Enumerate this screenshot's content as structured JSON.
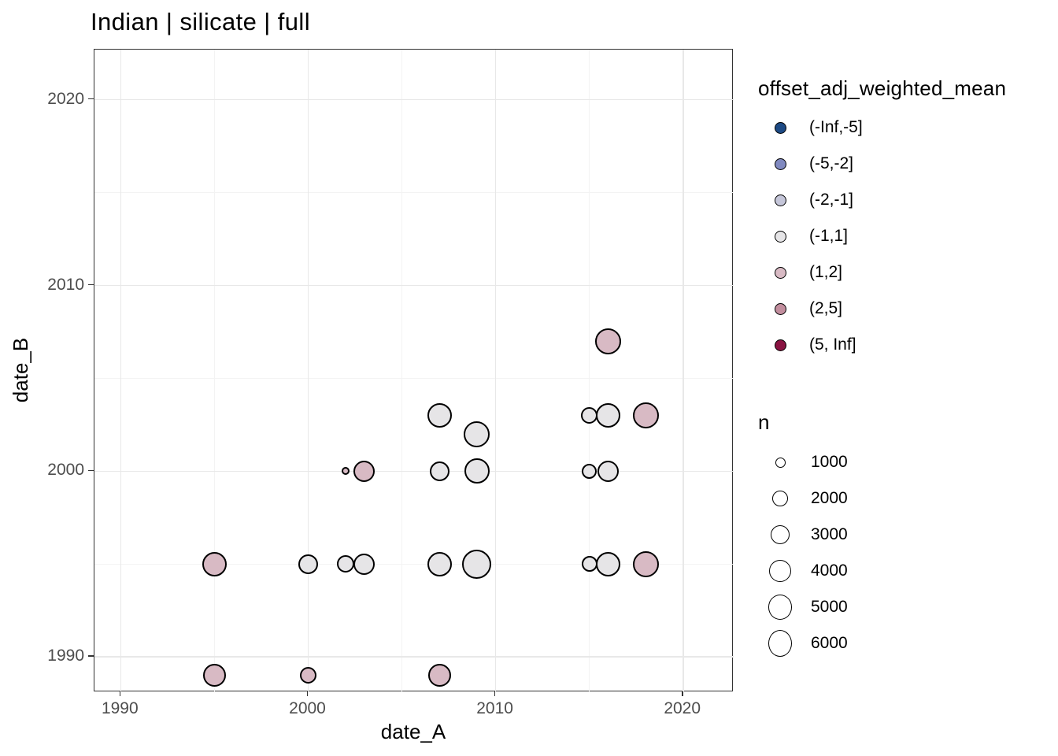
{
  "title": "Indian | silicate | full",
  "axes": {
    "x": {
      "label": "date_A",
      "tick_labels": [
        "1990",
        "2000",
        "2010",
        "2020"
      ],
      "tick_values": [
        1990,
        2000,
        2010,
        2020
      ],
      "minor_ticks": [
        1995,
        2005,
        2015
      ]
    },
    "y": {
      "label": "date_B",
      "tick_labels": [
        "1990",
        "2000",
        "2010",
        "2020"
      ],
      "tick_values": [
        1990,
        2000,
        2010,
        2020
      ],
      "minor_ticks": [
        1995,
        2005,
        2015
      ]
    }
  },
  "legend_color": {
    "title": "offset_adj_weighted_mean",
    "entries": [
      {
        "label": "(-Inf,-5]",
        "color": "#1d4a84"
      },
      {
        "label": "(-5,-2]",
        "color": "#8089c0"
      },
      {
        "label": "(-2,-1]",
        "color": "#c5c6d9"
      },
      {
        "label": "(-1,1]",
        "color": "#e6e5e7"
      },
      {
        "label": "(1,2]",
        "color": "#d8bac4"
      },
      {
        "label": "(2,5]",
        "color": "#c28e9e"
      },
      {
        "label": "(5, Inf]",
        "color": "#891341"
      }
    ]
  },
  "legend_size": {
    "title": "n",
    "entries": [
      {
        "label": "1000",
        "r": 5.5
      },
      {
        "label": "2000",
        "r": 9.3
      },
      {
        "label": "3000",
        "r": 11.3
      },
      {
        "label": "4000",
        "r": 13
      },
      {
        "label": "5000",
        "r": 14.7
      },
      {
        "label": "6000",
        "r": 16
      }
    ]
  },
  "chart_data": {
    "type": "scatter",
    "title": "Indian | silicate | full",
    "xlabel": "date_A",
    "ylabel": "date_B",
    "xlim": [
      1988.6,
      2022.7
    ],
    "ylim": [
      1988.1,
      2022.7
    ],
    "x_ticks": [
      1990,
      2000,
      2010,
      2020
    ],
    "y_ticks": [
      1990,
      2000,
      2010,
      2020
    ],
    "grid": "major and minor gridlines on, white panel, thin dark border",
    "legend_position": "right",
    "color_variable": "offset_adj_weighted_mean",
    "size_variable": "n",
    "size_legend_range": [
      1000,
      6000
    ],
    "points": [
      {
        "date_A": 1995,
        "date_B": 1995,
        "offset_bin": "(1,2]",
        "n": 4700,
        "r": 14
      },
      {
        "date_A": 1995,
        "date_B": 1989,
        "offset_bin": "(1,2]",
        "n": 4100,
        "r": 13
      },
      {
        "date_A": 2000,
        "date_B": 1995,
        "offset_bin": "(-1,1]",
        "n": 3100,
        "r": 11
      },
      {
        "date_A": 2000,
        "date_B": 1989,
        "offset_bin": "(1,2]",
        "n": 2200,
        "r": 9
      },
      {
        "date_A": 2002,
        "date_B": 2000,
        "offset_bin": "(1,2]",
        "n": 500,
        "r": 3.5
      },
      {
        "date_A": 2002,
        "date_B": 1995,
        "offset_bin": "(-1,1]",
        "n": 2400,
        "r": 9.5
      },
      {
        "date_A": 2003,
        "date_B": 2000,
        "offset_bin": "(1,2]",
        "n": 3600,
        "r": 12
      },
      {
        "date_A": 2003,
        "date_B": 1995,
        "offset_bin": "(-1,1]",
        "n": 3600,
        "r": 12
      },
      {
        "date_A": 2007,
        "date_B": 2003,
        "offset_bin": "(-1,1]",
        "n": 4700,
        "r": 14
      },
      {
        "date_A": 2007,
        "date_B": 2000,
        "offset_bin": "(-1,1]",
        "n": 3100,
        "r": 11
      },
      {
        "date_A": 2007,
        "date_B": 1995,
        "offset_bin": "(-1,1]",
        "n": 4700,
        "r": 14
      },
      {
        "date_A": 2007,
        "date_B": 1989,
        "offset_bin": "(1,2]",
        "n": 4100,
        "r": 13
      },
      {
        "date_A": 2009,
        "date_B": 2002,
        "offset_bin": "(-1,1]",
        "n": 5300,
        "r": 15
      },
      {
        "date_A": 2009,
        "date_B": 2000,
        "offset_bin": "(-1,1]",
        "n": 5000,
        "r": 14.5
      },
      {
        "date_A": 2009,
        "date_B": 1995,
        "offset_bin": "(-1,1]",
        "n": 6700,
        "r": 17
      },
      {
        "date_A": 2015,
        "date_B": 2003,
        "offset_bin": "(-1,1]",
        "n": 2200,
        "r": 9
      },
      {
        "date_A": 2015,
        "date_B": 2000,
        "offset_bin": "(-1,1]",
        "n": 1800,
        "r": 8
      },
      {
        "date_A": 2015,
        "date_B": 1995,
        "offset_bin": "(-1,1]",
        "n": 2000,
        "r": 8.5
      },
      {
        "date_A": 2016,
        "date_B": 2007,
        "offset_bin": "(1,2]",
        "n": 5300,
        "r": 15
      },
      {
        "date_A": 2016,
        "date_B": 2003,
        "offset_bin": "(-1,1]",
        "n": 4700,
        "r": 14
      },
      {
        "date_A": 2016,
        "date_B": 2000,
        "offset_bin": "(-1,1]",
        "n": 3600,
        "r": 12
      },
      {
        "date_A": 2016,
        "date_B": 1995,
        "offset_bin": "(-1,1]",
        "n": 4700,
        "r": 14
      },
      {
        "date_A": 2018,
        "date_B": 2003,
        "offset_bin": "(1,2]",
        "n": 5300,
        "r": 15
      },
      {
        "date_A": 2018,
        "date_B": 1995,
        "offset_bin": "(1,2]",
        "n": 5300,
        "r": 15
      }
    ]
  },
  "colors": {
    "background": "#ffffff",
    "panel_border": "#333333",
    "grid_major": "#e8e8e8",
    "grid_minor": "#f3f3f3",
    "tick_text": "#4d4d4d",
    "text": "#000000",
    "point_stroke": "#000000",
    "size_key_fill": "#ffffff"
  }
}
